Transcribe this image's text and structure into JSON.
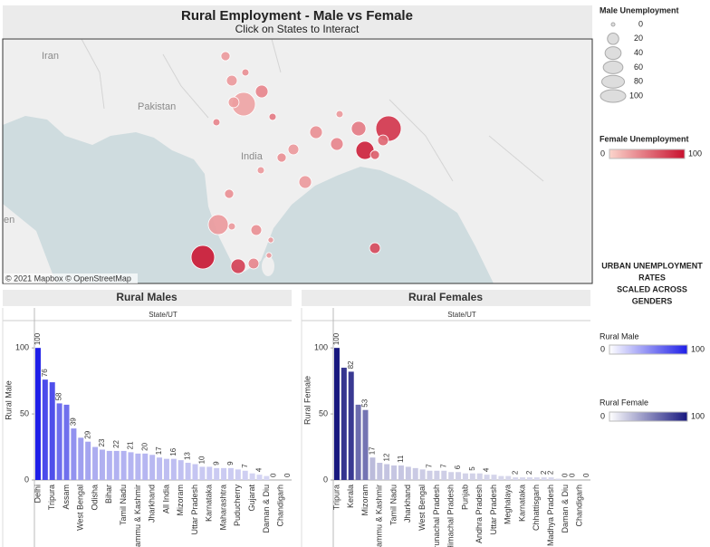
{
  "header": {
    "title": "Rural Employment - Male vs Female",
    "subtitle": "Click on States to Interact"
  },
  "map": {
    "labels": [
      "Iran",
      "Pakistan",
      "India",
      "en"
    ],
    "attribution": "© 2021 Mapbox © OpenStreetMap",
    "points": [
      {
        "male": 13,
        "female": 30
      },
      {
        "male": 8,
        "female": 35
      },
      {
        "male": 18,
        "female": 30
      },
      {
        "male": 25,
        "female": 40
      },
      {
        "male": 86,
        "female": 25
      },
      {
        "male": 18,
        "female": 28
      },
      {
        "male": 8,
        "female": 45
      },
      {
        "male": 8,
        "female": 40
      },
      {
        "male": 8,
        "female": 30
      },
      {
        "male": 33,
        "female": 45
      },
      {
        "male": 100,
        "female": 80
      },
      {
        "male": 18,
        "female": 55
      },
      {
        "male": 25,
        "female": 35
      },
      {
        "male": 25,
        "female": 40
      },
      {
        "male": 51,
        "female": 90
      },
      {
        "male": 13,
        "female": 60
      },
      {
        "male": 18,
        "female": 30
      },
      {
        "male": 13,
        "female": 35
      },
      {
        "male": 8,
        "female": 30
      },
      {
        "male": 25,
        "female": 30
      },
      {
        "male": 13,
        "female": 35
      },
      {
        "male": 62,
        "female": 30
      },
      {
        "male": 8,
        "female": 30
      },
      {
        "male": 18,
        "female": 35
      },
      {
        "male": 5,
        "female": 30
      },
      {
        "male": 86,
        "female": 95
      },
      {
        "male": 33,
        "female": 75
      },
      {
        "male": 18,
        "female": 40
      },
      {
        "male": 5,
        "female": 30
      },
      {
        "male": 18,
        "female": 70
      }
    ]
  },
  "legends": {
    "male_size": {
      "title": "Male Unemployment",
      "values": [
        0,
        20,
        40,
        60,
        80,
        100
      ]
    },
    "female_color": {
      "title": "Female Unemployment",
      "range": [
        0,
        100
      ],
      "colors": [
        "#fbd5cc",
        "#c8102e"
      ]
    },
    "note": [
      "URBAN UNEMPLOYMENT",
      "RATES",
      "SCALED ACROSS",
      "GENDERS"
    ],
    "rural_male": {
      "title": "Rural Male",
      "range": [
        0,
        100
      ]
    },
    "rural_female": {
      "title": "Rural Female",
      "range": [
        0,
        100
      ]
    }
  },
  "chart_data": [
    {
      "type": "bar",
      "title": "Rural Males",
      "header": "State/UT",
      "y_label": "Rural Male",
      "colors": [
        "#dcdcf3",
        "#1e1ee8"
      ],
      "categories": [
        "Delhi",
        null,
        "Tripura",
        null,
        "Assam",
        null,
        "West Bengal",
        null,
        "Odisha",
        null,
        "Bihar",
        null,
        "Tamil Nadu",
        null,
        "Jammu & Kashmir",
        null,
        "Jharkhand",
        null,
        "All India",
        null,
        "Mizoram",
        null,
        "Uttar Pradesh",
        null,
        "Karnataka",
        null,
        "Maharashtra",
        null,
        "Puducherry",
        null,
        "Gujarat",
        null,
        "Daman & Diu",
        null,
        "Chandigarh",
        null
      ],
      "values": [
        100,
        76,
        74,
        58,
        57,
        39,
        32,
        29,
        25,
        23,
        22,
        22,
        22,
        21,
        20,
        20,
        19,
        17,
        16,
        16,
        15,
        13,
        12,
        10,
        10,
        9,
        9,
        9,
        8,
        7,
        5,
        4,
        3,
        0,
        0,
        0
      ],
      "value_labels": [
        100,
        76,
        null,
        58,
        null,
        39,
        null,
        29,
        null,
        23,
        null,
        22,
        null,
        21,
        null,
        20,
        null,
        17,
        null,
        16,
        null,
        13,
        null,
        10,
        null,
        9,
        null,
        9,
        null,
        7,
        null,
        4,
        null,
        0,
        null,
        0
      ],
      "ylim": [
        0,
        120
      ],
      "yticks": [
        0,
        50,
        100
      ]
    },
    {
      "type": "bar",
      "title": "Rural Females",
      "header": "State/UT",
      "y_label": "Rural Female",
      "colors": [
        "#dcdcee",
        "#17177e"
      ],
      "categories": [
        "Tripura",
        null,
        "Kerala",
        null,
        "Mizoram",
        null,
        "Jammu & Kashmir",
        null,
        "Tamil Nadu",
        null,
        "Jharkhand",
        null,
        "West Bengal",
        null,
        "Arunachal Pradesh",
        null,
        "Himachal Pradesh",
        null,
        "Punjab",
        null,
        "Andhra Pradesh",
        null,
        "Uttar Pradesh",
        null,
        "Meghalaya",
        null,
        "Karnataka",
        null,
        "Chhattisgarh",
        null,
        "Madhya Pradesh",
        null,
        "Daman & Diu",
        null,
        "Chandigarh",
        null
      ],
      "values": [
        100,
        85,
        82,
        57,
        53,
        17,
        13,
        12,
        11,
        11,
        10,
        9,
        8,
        7,
        7,
        7,
        6,
        6,
        5,
        5,
        5,
        4,
        4,
        3,
        3,
        2,
        2,
        2,
        2,
        2,
        2,
        1,
        0,
        0,
        0,
        0
      ],
      "value_labels": [
        100,
        null,
        82,
        null,
        53,
        17,
        null,
        12,
        null,
        11,
        null,
        null,
        null,
        7,
        null,
        7,
        null,
        6,
        null,
        5,
        null,
        4,
        null,
        null,
        null,
        2,
        null,
        2,
        null,
        2,
        2,
        null,
        0,
        0,
        null,
        0
      ],
      "ylim": [
        0,
        120
      ],
      "yticks": [
        0,
        50,
        100
      ]
    }
  ]
}
